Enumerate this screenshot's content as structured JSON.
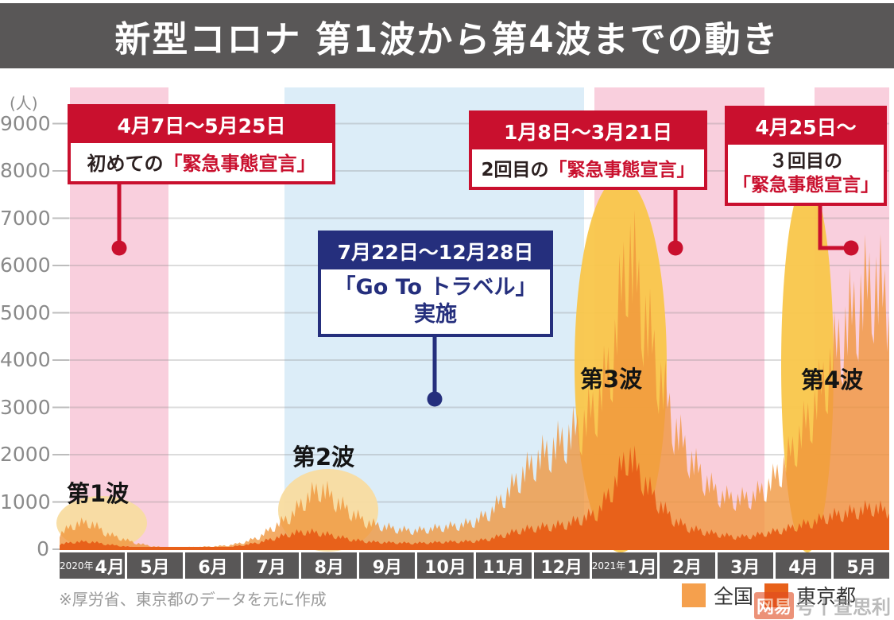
{
  "title": "新型コロナ 第1波から第4波までの動き",
  "axes": {
    "unit": "(人)",
    "y_ticks": [
      0,
      1000,
      2000,
      3000,
      4000,
      5000,
      6000,
      7000,
      8000,
      9000
    ]
  },
  "x_axis": {
    "months": [
      {
        "year": "2020年",
        "label": "4月"
      },
      {
        "label": "5月"
      },
      {
        "label": "6月"
      },
      {
        "label": "7月"
      },
      {
        "label": "8月"
      },
      {
        "label": "9月"
      },
      {
        "label": "10月"
      },
      {
        "label": "11月"
      },
      {
        "label": "12月"
      },
      {
        "year": "2021年",
        "label": "1月"
      },
      {
        "label": "2月"
      },
      {
        "label": "3月"
      },
      {
        "label": "4月"
      },
      {
        "label": "5月"
      }
    ]
  },
  "waves": [
    {
      "label": "第1波"
    },
    {
      "label": "第2波"
    },
    {
      "label": "第3波"
    },
    {
      "label": "第4波"
    }
  ],
  "annotations": [
    {
      "date": "4月7日〜5月25日",
      "body_plain": "初めての",
      "body_em": "「緊急事態宣言」"
    },
    {
      "date": "1月8日〜3月21日",
      "body_plain": "2回目の",
      "body_em": "「緊急事態宣言」"
    },
    {
      "date": "4月25日〜",
      "body_line1": "３回目の",
      "body_em": "「緊急事態宣言」"
    },
    {
      "date": "7月22日〜12月28日",
      "body_line1": "「Go To トラベル」",
      "body_line2": "実施"
    }
  ],
  "legend": [
    {
      "label": "全国",
      "color": "#F5A04D"
    },
    {
      "label": "東京都",
      "color": "#E8611A"
    }
  ],
  "footnote": "※厚労省、東京都のデータを元に作成",
  "watermark": {
    "badge": "网易",
    "text": "号丨查思利"
  },
  "colors": {
    "title_bar": "#595757",
    "band_pink": "#F9CFDD",
    "band_blue": "#DCEDF8",
    "accent_red": "#C9102E",
    "accent_navy": "#252F7D",
    "highlight_soft": "#F8DCA0",
    "highlight_strong": "#F9C64A",
    "series_zenkoku": "#F0953B",
    "series_tokyo": "#E8611A"
  },
  "chart_data": {
    "type": "area",
    "title": "新型コロナ 第1波から第4波までの動き",
    "ylabel": "(人)",
    "ylim": [
      0,
      9000
    ],
    "x_range": [
      "2020-04",
      "2021-05"
    ],
    "sampling": "weekly peak values, Apr 2020 – mid May 2021",
    "grid": true,
    "legend_position": "bottom-right",
    "series": [
      {
        "name": "全国",
        "color": "#F0953B",
        "values": [
          400,
          650,
          700,
          420,
          280,
          160,
          80,
          45,
          50,
          60,
          75,
          100,
          180,
          320,
          600,
          850,
          1300,
          1600,
          1250,
          950,
          700,
          600,
          520,
          480,
          520,
          580,
          620,
          720,
          950,
          1400,
          1900,
          2300,
          2600,
          2900,
          3200,
          3800,
          5000,
          7900,
          6200,
          4600,
          3200,
          2400,
          1800,
          1400,
          1300,
          1350,
          1600,
          2100,
          2800,
          3600,
          4600,
          5600,
          6400,
          7000,
          6200
        ]
      },
      {
        "name": "東京都",
        "color": "#E8611A",
        "values": [
          130,
          190,
          200,
          130,
          85,
          45,
          20,
          12,
          20,
          26,
          32,
          55,
          110,
          180,
          290,
          400,
          460,
          420,
          340,
          250,
          200,
          180,
          170,
          160,
          170,
          190,
          200,
          210,
          270,
          380,
          500,
          560,
          600,
          650,
          800,
          950,
          1600,
          2500,
          1800,
          1200,
          750,
          550,
          450,
          380,
          320,
          340,
          420,
          500,
          600,
          700,
          850,
          920,
          1000,
          1100,
          950
        ]
      }
    ],
    "bands": [
      {
        "kind": "emergency",
        "label": "初めての緊急事態宣言",
        "from": "2020-04-07",
        "to": "2020-05-25",
        "color": "#F9CFDD"
      },
      {
        "kind": "campaign",
        "label": "Go To トラベル実施",
        "from": "2020-07-22",
        "to": "2020-12-28",
        "color": "#DCEDF8"
      },
      {
        "kind": "emergency",
        "label": "2回目の緊急事態宣言",
        "from": "2021-01-08",
        "to": "2021-03-21",
        "color": "#F9CFDD"
      },
      {
        "kind": "emergency",
        "label": "3回目の緊急事態宣言",
        "from": "2021-04-25",
        "to": null,
        "color": "#F9CFDD"
      }
    ]
  }
}
